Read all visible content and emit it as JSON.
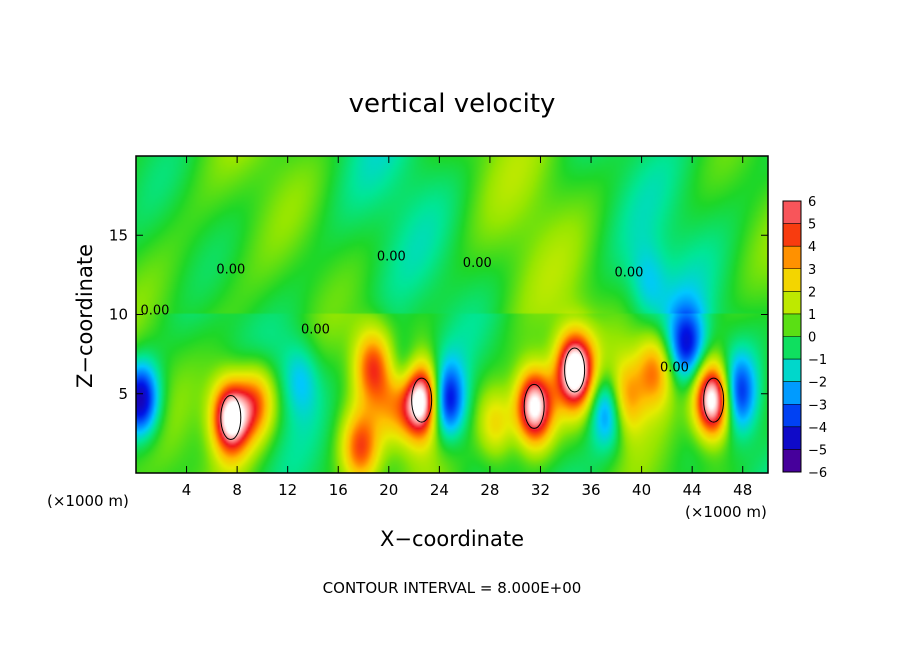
{
  "chart_data": {
    "type": "heatmap",
    "title": "vertical velocity",
    "xlabel": "X−coordinate",
    "ylabel": "Z−coordinate",
    "x_unit_left": "(×1000 m)",
    "x_unit_right": "(×1000 m)",
    "footer": "CONTOUR INTERVAL = 8.000E+00",
    "xlim": [
      0,
      50
    ],
    "ylim": [
      0,
      20
    ],
    "x_ticks": [
      4,
      8,
      12,
      16,
      20,
      24,
      28,
      32,
      36,
      40,
      44,
      48
    ],
    "y_ticks": [
      5,
      10,
      15
    ],
    "colorbar": {
      "min": -6,
      "max": 6,
      "labels": [
        "6",
        "5",
        "4",
        "3",
        "2",
        "1",
        "0",
        "−1",
        "−2",
        "−3",
        "−4",
        "−5",
        "−6"
      ]
    },
    "contour_labels": [
      {
        "text": "0.00",
        "x": 1.5,
        "y": 10.0
      },
      {
        "text": "0.00",
        "x": 7.5,
        "y": 12.6
      },
      {
        "text": "0.00",
        "x": 14.2,
        "y": 8.8
      },
      {
        "text": "0.00",
        "x": 20.2,
        "y": 13.4
      },
      {
        "text": "0.00",
        "x": 27.0,
        "y": 13.0
      },
      {
        "text": "0.00",
        "x": 39.0,
        "y": 12.4
      },
      {
        "text": "0.00",
        "x": 42.6,
        "y": 6.4
      }
    ],
    "features": [
      {
        "sign": "up",
        "x": 7.5,
        "y": 3.5,
        "peak": 8
      },
      {
        "sign": "up",
        "x": 9.5,
        "y": 4.5,
        "peak": 4
      },
      {
        "sign": "up",
        "x": 18.7,
        "y": 6.8,
        "peak": 4
      },
      {
        "sign": "up",
        "x": 17.8,
        "y": 1.5,
        "peak": 4
      },
      {
        "sign": "up",
        "x": 20.6,
        "y": 4.5,
        "peak": 3
      },
      {
        "sign": "up",
        "x": 22.6,
        "y": 4.6,
        "peak": 9
      },
      {
        "sign": "up",
        "x": 31.5,
        "y": 4.2,
        "peak": 8
      },
      {
        "sign": "up",
        "x": 34.7,
        "y": 6.5,
        "peak": 8
      },
      {
        "sign": "up",
        "x": 28.5,
        "y": 3.0,
        "peak": 3
      },
      {
        "sign": "up",
        "x": 38.4,
        "y": 4.6,
        "peak": 6
      },
      {
        "sign": "up",
        "x": 41.0,
        "y": 6.5,
        "peak": 4
      },
      {
        "sign": "up",
        "x": 45.7,
        "y": 4.6,
        "peak": 9
      },
      {
        "sign": "down",
        "x": 0.4,
        "y": 4.6,
        "peak": -5
      },
      {
        "sign": "down",
        "x": 24.5,
        "y": 4.5,
        "peak": -5
      },
      {
        "sign": "down",
        "x": 21.2,
        "y": 6.0,
        "peak": -3
      },
      {
        "sign": "down",
        "x": 37.6,
        "y": 4.2,
        "peak": -6
      },
      {
        "sign": "down",
        "x": 43.6,
        "y": 8.0,
        "peak": -4
      },
      {
        "sign": "down",
        "x": 47.5,
        "y": 5.0,
        "peak": -4
      },
      {
        "sign": "down",
        "x": 13.0,
        "y": 6.0,
        "peak": -2
      },
      {
        "sign": "down",
        "x": 40.5,
        "y": 12.0,
        "peak": -1.5
      }
    ]
  }
}
